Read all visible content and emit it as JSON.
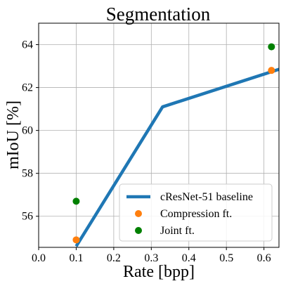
{
  "chart_data": {
    "type": "line",
    "title": "Segmentation",
    "xlabel": "Rate [bpp]",
    "ylabel": "mIoU [%]",
    "xlim": [
      0.0,
      0.64
    ],
    "ylim": [
      54.55,
      65.0
    ],
    "xticks": [
      0.0,
      0.1,
      0.2,
      0.3,
      0.4,
      0.5,
      0.6
    ],
    "xtick_labels": [
      "0.0",
      "0.1",
      "0.2",
      "0.3",
      "0.4",
      "0.5",
      "0.6"
    ],
    "yticks": [
      56,
      58,
      60,
      62,
      64
    ],
    "ytick_labels": [
      "56",
      "58",
      "60",
      "62",
      "64"
    ],
    "grid": true,
    "legend_position": "lower-right",
    "series": [
      {
        "name": "cResNet-51 baseline",
        "kind": "line",
        "color": "#1f77b4",
        "x": [
          0.1,
          0.33,
          0.64
        ],
        "y": [
          54.6,
          61.1,
          62.85
        ]
      },
      {
        "name": "Compression ft.",
        "kind": "scatter",
        "color": "#ff7f0e",
        "x": [
          0.1,
          0.62
        ],
        "y": [
          54.9,
          62.8
        ]
      },
      {
        "name": "Joint ft.",
        "kind": "scatter",
        "color": "#008000",
        "x": [
          0.1,
          0.62
        ],
        "y": [
          56.7,
          63.9
        ]
      }
    ]
  }
}
